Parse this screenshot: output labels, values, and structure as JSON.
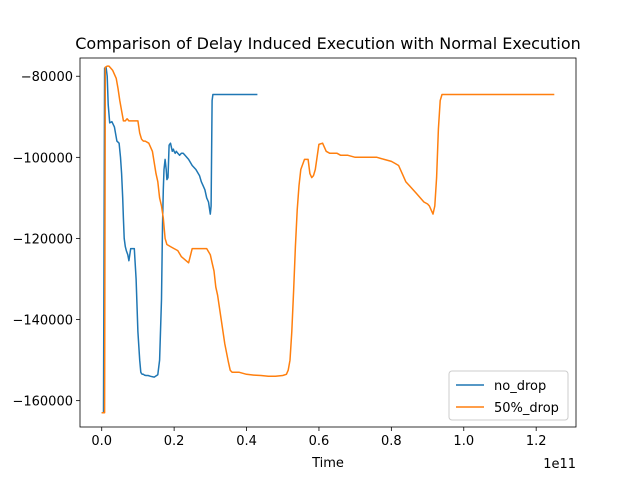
{
  "chart_data": {
    "type": "line",
    "title": "Comparison of Delay Induced Execution with Normal Execution",
    "xlabel": "Time",
    "ylabel": "",
    "x_offset_text": "1e11",
    "xlim": [
      -0.06,
      1.31
    ],
    "ylim": [
      -166500,
      -75500
    ],
    "xticks": [
      0.0,
      0.2,
      0.4,
      0.6,
      0.8,
      1.0,
      1.2
    ],
    "xtick_labels": [
      "0.0",
      "0.2",
      "0.4",
      "0.6",
      "0.8",
      "1.0",
      "1.2"
    ],
    "yticks": [
      -160000,
      -140000,
      -120000,
      -100000,
      -80000
    ],
    "ytick_labels": [
      "−160000",
      "−140000",
      "−120000",
      "−100000",
      "−80000"
    ],
    "grid": false,
    "legend_position": "lower-right",
    "series": [
      {
        "name": "no_drop",
        "color": "#1f77b4",
        "x": [
          0.0,
          0.005,
          0.008,
          0.012,
          0.015,
          0.018,
          0.022,
          0.028,
          0.035,
          0.042,
          0.048,
          0.052,
          0.055,
          0.058,
          0.06,
          0.062,
          0.065,
          0.068,
          0.072,
          0.075,
          0.08,
          0.085,
          0.09,
          0.095,
          0.1,
          0.105,
          0.108,
          0.11,
          0.112,
          0.115,
          0.118,
          0.122,
          0.128,
          0.135,
          0.145,
          0.155,
          0.16,
          0.165,
          0.168,
          0.17,
          0.172,
          0.175,
          0.178,
          0.18,
          0.183,
          0.186,
          0.19,
          0.195,
          0.198,
          0.2,
          0.203,
          0.206,
          0.21,
          0.215,
          0.22,
          0.225,
          0.23,
          0.24,
          0.25,
          0.26,
          0.27,
          0.275,
          0.28,
          0.285,
          0.29,
          0.295,
          0.3,
          0.302,
          0.305,
          0.307,
          0.31,
          0.315,
          0.32,
          0.33,
          0.35,
          0.38,
          0.41,
          0.43
        ],
        "y": [
          -163000,
          -163000,
          -78000,
          -77800,
          -80000,
          -87000,
          -91500,
          -91200,
          -92500,
          -96000,
          -96500,
          -100000,
          -104000,
          -110000,
          -115000,
          -120000,
          -122000,
          -123000,
          -124000,
          -125500,
          -122500,
          -122500,
          -122500,
          -130000,
          -143000,
          -150000,
          -153000,
          -153300,
          -153500,
          -153500,
          -153700,
          -153800,
          -153800,
          -154000,
          -154200,
          -153600,
          -150000,
          -135000,
          -117000,
          -108000,
          -103000,
          -100500,
          -103000,
          -105500,
          -105000,
          -97000,
          -96500,
          -98500,
          -98000,
          -98500,
          -99000,
          -98500,
          -99000,
          -99500,
          -99000,
          -99000,
          -99500,
          -100500,
          -102000,
          -103000,
          -104500,
          -106000,
          -107000,
          -108000,
          -110000,
          -111000,
          -114000,
          -112000,
          -86000,
          -84500,
          -84500,
          -84500,
          -84500,
          -84500,
          -84500,
          -84500,
          -84500,
          -84500
        ]
      },
      {
        "name": "50%_drop",
        "color": "#ff7f0e",
        "x": [
          0.0,
          0.008,
          0.01,
          0.015,
          0.02,
          0.03,
          0.04,
          0.045,
          0.05,
          0.055,
          0.058,
          0.06,
          0.065,
          0.07,
          0.075,
          0.08,
          0.09,
          0.1,
          0.105,
          0.11,
          0.115,
          0.12,
          0.13,
          0.14,
          0.15,
          0.155,
          0.16,
          0.165,
          0.17,
          0.175,
          0.18,
          0.19,
          0.2,
          0.21,
          0.22,
          0.24,
          0.25,
          0.255,
          0.26,
          0.27,
          0.28,
          0.29,
          0.3,
          0.305,
          0.31,
          0.315,
          0.32,
          0.33,
          0.34,
          0.35,
          0.355,
          0.36,
          0.37,
          0.38,
          0.4,
          0.42,
          0.44,
          0.46,
          0.48,
          0.5,
          0.51,
          0.515,
          0.52,
          0.525,
          0.53,
          0.535,
          0.54,
          0.545,
          0.55,
          0.56,
          0.57,
          0.575,
          0.58,
          0.585,
          0.59,
          0.6,
          0.61,
          0.62,
          0.63,
          0.64,
          0.65,
          0.66,
          0.68,
          0.7,
          0.72,
          0.74,
          0.76,
          0.78,
          0.8,
          0.81,
          0.82,
          0.83,
          0.84,
          0.85,
          0.86,
          0.87,
          0.88,
          0.89,
          0.9,
          0.905,
          0.91,
          0.915,
          0.92,
          0.925,
          0.93,
          0.935,
          0.94,
          0.95,
          0.97,
          1.0,
          1.05,
          1.1,
          1.15,
          1.2,
          1.25
        ],
        "y": [
          -163000,
          -163000,
          -77800,
          -77500,
          -77500,
          -78500,
          -80500,
          -83000,
          -86000,
          -88500,
          -90000,
          -91000,
          -91000,
          -90500,
          -91000,
          -91000,
          -91000,
          -91000,
          -94000,
          -95500,
          -96000,
          -96000,
          -96500,
          -98500,
          -104000,
          -106000,
          -110000,
          -112000,
          -115000,
          -120000,
          -121500,
          -122000,
          -122500,
          -123000,
          -124500,
          -126000,
          -122500,
          -122500,
          -122500,
          -122500,
          -122500,
          -122500,
          -124000,
          -126000,
          -128000,
          -132000,
          -134000,
          -140000,
          -146000,
          -150500,
          -152500,
          -153000,
          -153000,
          -153000,
          -153500,
          -153700,
          -153800,
          -154000,
          -154000,
          -153800,
          -153500,
          -152500,
          -150000,
          -143000,
          -133000,
          -122000,
          -113000,
          -107000,
          -103000,
          -100500,
          -100500,
          -104000,
          -105000,
          -104500,
          -103000,
          -96800,
          -96500,
          -98500,
          -99000,
          -99000,
          -99000,
          -99500,
          -99500,
          -100000,
          -100000,
          -100000,
          -100000,
          -100500,
          -101000,
          -101500,
          -102000,
          -104000,
          -106000,
          -107000,
          -108000,
          -109000,
          -110000,
          -111000,
          -111500,
          -112000,
          -113000,
          -114000,
          -112000,
          -105000,
          -93000,
          -86000,
          -84500,
          -84500,
          -84500,
          -84500,
          -84500,
          -84500,
          -84500,
          -84500,
          -84500
        ]
      }
    ]
  }
}
